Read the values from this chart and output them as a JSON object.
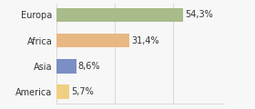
{
  "categories": [
    "Europa",
    "Africa",
    "Asia",
    "America"
  ],
  "values": [
    54.3,
    31.4,
    8.6,
    5.7
  ],
  "labels": [
    "54,3%",
    "31,4%",
    "8,6%",
    "5,7%"
  ],
  "bar_colors": [
    "#a8bc8a",
    "#e8b882",
    "#7a8fc4",
    "#f0d080"
  ],
  "background_color": "#f7f7f7",
  "xlim": [
    0,
    72
  ],
  "label_fontsize": 7.0,
  "tick_fontsize": 7.0,
  "bar_height": 0.55,
  "grid_ticks": [
    0,
    25,
    50
  ]
}
